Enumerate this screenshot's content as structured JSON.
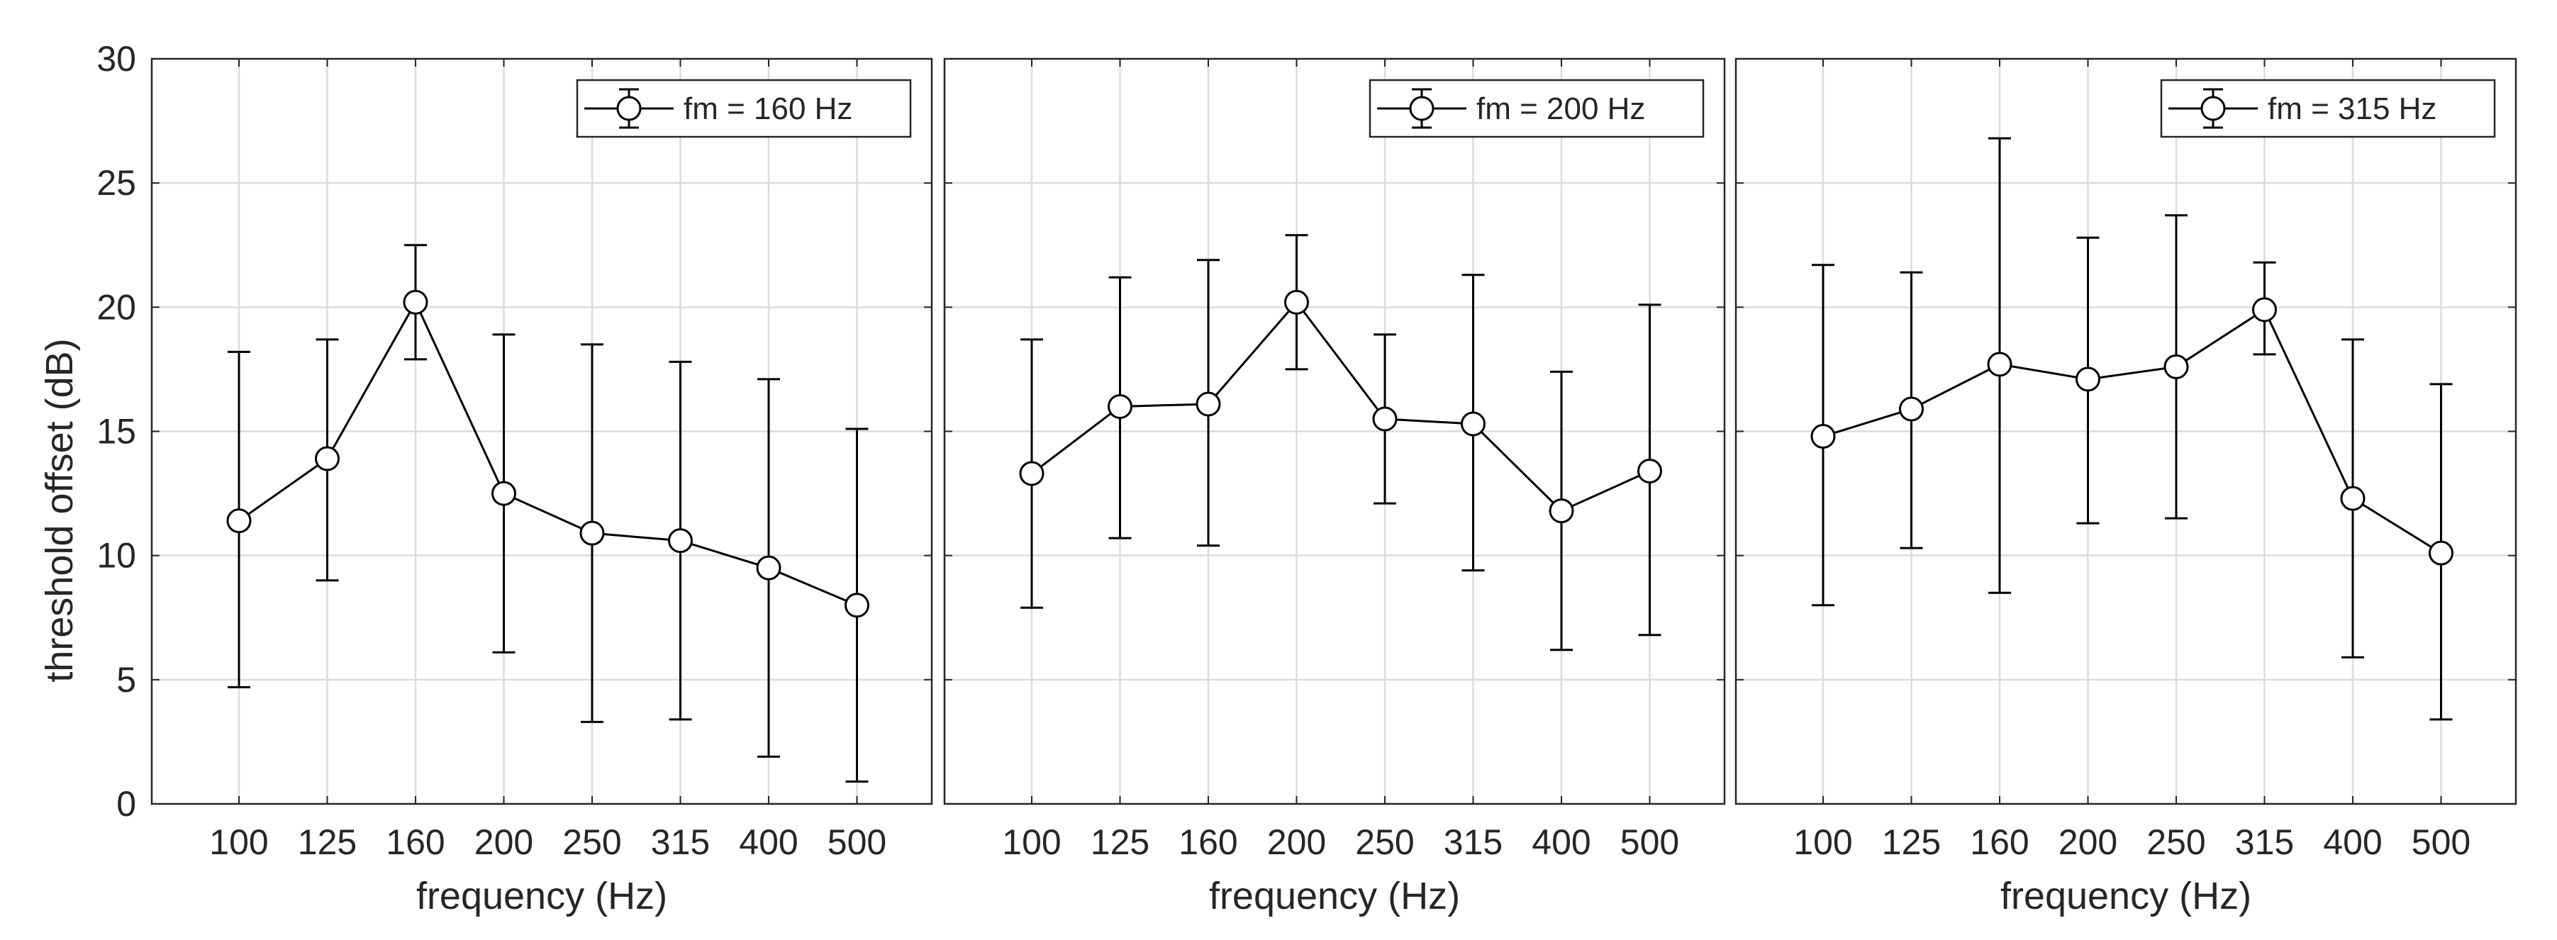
{
  "figure": {
    "ylabel": "threshold offset (dB)",
    "ylim": [
      0,
      30
    ],
    "yticks": [
      0,
      5,
      10,
      15,
      20,
      25,
      30
    ]
  },
  "chart_data": [
    {
      "type": "line",
      "title": "",
      "xlabel": "frequency (Hz)",
      "ylabel": "threshold offset (dB)",
      "categories": [
        "100",
        "125",
        "160",
        "200",
        "250",
        "315",
        "400",
        "500"
      ],
      "ylim": [
        0,
        30
      ],
      "grid": true,
      "legend_position": "top-right",
      "series": [
        {
          "name": "fm = 160 Hz",
          "values": [
            11.4,
            13.9,
            20.2,
            12.5,
            10.9,
            10.6,
            9.5,
            8.0
          ],
          "err_low": [
            4.7,
            9.0,
            17.9,
            6.1,
            3.3,
            3.4,
            1.9,
            0.9
          ],
          "err_high": [
            18.2,
            18.7,
            22.5,
            18.9,
            18.5,
            17.8,
            17.1,
            15.1
          ]
        }
      ]
    },
    {
      "type": "line",
      "title": "",
      "xlabel": "frequency (Hz)",
      "ylabel": "",
      "categories": [
        "100",
        "125",
        "160",
        "200",
        "250",
        "315",
        "400",
        "500"
      ],
      "ylim": [
        0,
        30
      ],
      "grid": true,
      "legend_position": "top-right",
      "series": [
        {
          "name": "fm = 200 Hz",
          "values": [
            13.3,
            16.0,
            16.1,
            20.2,
            15.5,
            15.3,
            11.8,
            13.4
          ],
          "err_low": [
            7.9,
            10.7,
            10.4,
            17.5,
            12.1,
            9.4,
            6.2,
            6.8
          ],
          "err_high": [
            18.7,
            21.2,
            21.9,
            22.9,
            18.9,
            21.3,
            17.4,
            20.1
          ]
        }
      ]
    },
    {
      "type": "line",
      "title": "",
      "xlabel": "frequency (Hz)",
      "ylabel": "",
      "categories": [
        "100",
        "125",
        "160",
        "200",
        "250",
        "315",
        "400",
        "500"
      ],
      "ylim": [
        0,
        30
      ],
      "grid": true,
      "legend_position": "top-right",
      "series": [
        {
          "name": "fm = 315 Hz",
          "values": [
            14.8,
            15.9,
            17.7,
            17.1,
            17.6,
            19.9,
            12.3,
            10.1
          ],
          "err_low": [
            8.0,
            10.3,
            8.5,
            11.3,
            11.5,
            18.1,
            5.9,
            3.4
          ],
          "err_high": [
            21.7,
            21.4,
            26.8,
            22.8,
            23.7,
            21.8,
            18.7,
            16.9
          ]
        }
      ]
    }
  ]
}
